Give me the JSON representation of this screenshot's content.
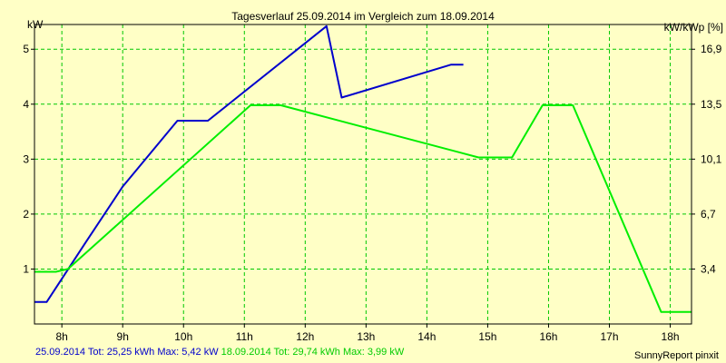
{
  "chart_data": {
    "type": "line",
    "title": "Tagesverlauf 25.09.2014 im Vergleich zum 18.09.2014",
    "ylabel": "kW",
    "y2label": "kW/kWp [%]",
    "x_unit": "hour",
    "xlim": [
      7.55,
      18.35
    ],
    "ylim": [
      0,
      5.45
    ],
    "x_ticks": [
      8,
      9,
      10,
      11,
      12,
      13,
      14,
      15,
      16,
      17,
      18
    ],
    "x_tick_labels": [
      "8h",
      "9h",
      "10h",
      "11h",
      "12h",
      "13h",
      "14h",
      "15h",
      "16h",
      "17h",
      "18h"
    ],
    "y_ticks": [
      1,
      2,
      3,
      4,
      5
    ],
    "y_tick_labels": [
      "1",
      "2",
      "3",
      "4",
      "5"
    ],
    "y2_ticks": [
      1,
      2,
      3,
      4,
      5
    ],
    "y2_tick_labels": [
      "3,4",
      "6,7",
      "10,1",
      "13,5",
      "16,9"
    ],
    "grid": true,
    "grid_style": "dashed",
    "grid_color": "#00c800",
    "plot_background": "#ffffc6",
    "series": [
      {
        "name": "25.09.2014",
        "color": "#0000cc",
        "x": [
          7.55,
          7.75,
          8.4,
          9.0,
          9.9,
          10.4,
          12.35,
          12.6,
          14.4,
          14.6
        ],
        "values": [
          0.4,
          0.4,
          1.5,
          2.5,
          3.7,
          3.7,
          5.42,
          4.12,
          4.72,
          4.72
        ]
      },
      {
        "name": "18.09.2014",
        "color": "#00ee00",
        "x": [
          7.55,
          7.9,
          8.1,
          11.1,
          11.6,
          14.85,
          15.4,
          15.9,
          16.4,
          17.85,
          18.35
        ],
        "values": [
          0.95,
          0.95,
          1.0,
          3.98,
          3.98,
          3.03,
          3.03,
          3.98,
          3.98,
          0.22,
          0.22
        ]
      }
    ]
  },
  "footer": {
    "series1_text": "25.09.2014 Tot: 25,25 kWh Max: 5,42 kW",
    "series2_text": "18.09.2014 Tot: 29,74 kWh Max: 3,99 kW",
    "credit": "SunnyReport pinxit"
  }
}
